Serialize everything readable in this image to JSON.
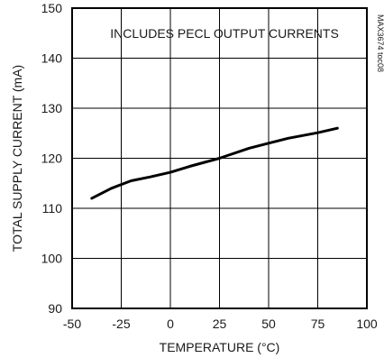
{
  "chart_data": {
    "type": "line",
    "title": "",
    "annotation": "INCLUDES PECL OUTPUT CURRENTS",
    "code_label": "MAX3674 toc08",
    "xlabel": "TEMPERATURE (°C)",
    "ylabel": "TOTAL SUPPLY CURRENT (mA)",
    "xlim": [
      -50,
      100
    ],
    "ylim": [
      90,
      150
    ],
    "xticks": [
      -50,
      -25,
      0,
      25,
      50,
      75,
      100
    ],
    "yticks": [
      90,
      100,
      110,
      120,
      130,
      140,
      150
    ],
    "grid": true,
    "line_color": "#000000",
    "series": [
      {
        "x": [
          -40,
          -30,
          -20,
          -10,
          0,
          10,
          25,
          40,
          50,
          60,
          75,
          85
        ],
        "y": [
          112,
          114,
          115.5,
          116.3,
          117.2,
          118.4,
          120,
          122,
          123,
          124,
          125.1,
          126
        ]
      }
    ]
  }
}
